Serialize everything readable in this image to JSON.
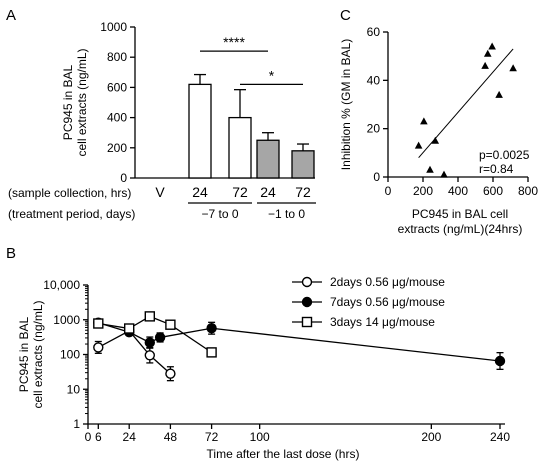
{
  "panels": {
    "a": "A",
    "b": "B",
    "c": "C"
  },
  "chart_data": [
    {
      "panel": "A",
      "type": "bar",
      "ylabel": [
        "PC945 in BAL",
        "cell extracts (ng/mL)"
      ],
      "ylim": [
        0,
        1000
      ],
      "yticks": [
        0,
        200,
        400,
        600,
        800,
        1000
      ],
      "row_labels": {
        "sample": "(sample collection, hrs)",
        "treatment": "(treatment period, days)"
      },
      "vehicle_label": "V",
      "categories": [
        "24",
        "72",
        "24",
        "72"
      ],
      "groups": [
        "−7 to 0",
        "−1 to 0"
      ],
      "values": [
        620,
        400,
        250,
        180
      ],
      "errors": [
        65,
        185,
        50,
        45
      ],
      "fills": [
        "#ffffff",
        "#ffffff",
        "#a6a6a6",
        "#a6a6a6"
      ],
      "significance": [
        {
          "from": 0,
          "to": 2,
          "label": "****",
          "y": 840
        },
        {
          "from": 1,
          "to": 3,
          "label": "*",
          "y": 620
        }
      ]
    },
    {
      "panel": "B",
      "type": "line",
      "xlabel": "Time after the last dose (hrs)",
      "ylabel": [
        "PC945 in BAL",
        "cell extracts (ng/mL)"
      ],
      "yscale": "log",
      "ylim": [
        1,
        10000
      ],
      "ytick_labels": [
        "10,000",
        "1000",
        "100",
        "10",
        "1"
      ],
      "ytick_values": [
        10000,
        1000,
        100,
        10,
        1
      ],
      "xlim": [
        0,
        240
      ],
      "xticks": [
        0,
        6,
        24,
        48,
        72,
        100,
        200,
        240
      ],
      "legend_position": "top-right",
      "series": [
        {
          "name": "2days 0.56 μg/mouse",
          "marker": "circle-open",
          "x": [
            6,
            24,
            36,
            48
          ],
          "y": [
            160,
            480,
            95,
            28
          ],
          "err": [
            0.17,
            0.05,
            0.22,
            0.2
          ]
        },
        {
          "name": "7days 0.56 μg/mouse",
          "marker": "circle-filled",
          "x": [
            6,
            24,
            36,
            42,
            72,
            240
          ],
          "y": [
            820,
            440,
            220,
            310,
            570,
            65
          ],
          "err": [
            0.04,
            0.04,
            0.16,
            0.13,
            0.17,
            0.24
          ]
        },
        {
          "name": "3days 14 μg/mouse",
          "marker": "square-open",
          "x": [
            6,
            24,
            36,
            48,
            72
          ],
          "y": [
            780,
            560,
            1250,
            720,
            115
          ],
          "err": [
            0.03,
            0.04,
            0.05,
            0.04,
            0.05
          ]
        }
      ]
    },
    {
      "panel": "C",
      "type": "scatter",
      "xlabel": [
        "PC945 in BAL cell",
        "extracts (ng/mL)(24hrs)"
      ],
      "ylabel": "Inhibition % (GM in BAL)",
      "xlim": [
        0,
        800
      ],
      "ylim": [
        0,
        60
      ],
      "xticks": [
        0,
        200,
        400,
        600,
        800
      ],
      "yticks": [
        0,
        20,
        40,
        60
      ],
      "points": [
        [
          175,
          13
        ],
        [
          205,
          23
        ],
        [
          240,
          3
        ],
        [
          270,
          15
        ],
        [
          320,
          1
        ],
        [
          555,
          46
        ],
        [
          570,
          51
        ],
        [
          595,
          54
        ],
        [
          635,
          34
        ],
        [
          715,
          45
        ]
      ],
      "fit": {
        "x": [
          175,
          715
        ],
        "y": [
          8,
          53
        ]
      },
      "stats": [
        "p=0.0025",
        "r=0.84"
      ]
    }
  ]
}
